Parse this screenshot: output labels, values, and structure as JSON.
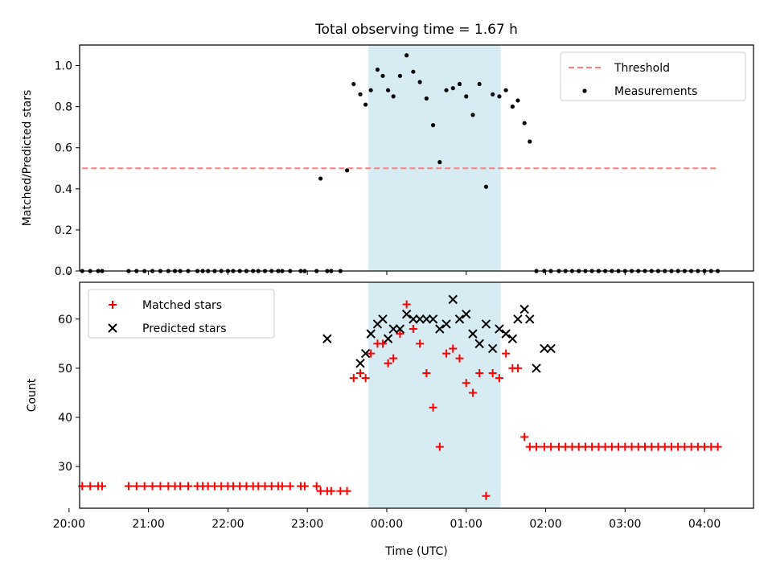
{
  "chart_data": {
    "type": "scatter",
    "title": "Total observing time = 1.67 h",
    "xlabel": "Time (UTC)",
    "x_unit": "UTC time",
    "xlim": [
      "20:08",
      "04:37"
    ],
    "x_ticks": [
      "20:00",
      "21:00",
      "22:00",
      "23:00",
      "00:00",
      "01:00",
      "02:00",
      "03:00",
      "04:00"
    ],
    "highlight_span": {
      "from": "23:46",
      "to": "01:26",
      "color": "#add8e6"
    },
    "panels": [
      {
        "ylabel": "Matched/Predicted stars",
        "ylim": [
          0,
          1.1
        ],
        "y_ticks": [
          "0.0",
          "0.2",
          "0.4",
          "0.6",
          "0.8",
          "1.0"
        ],
        "legend": {
          "position": "top-right",
          "entries": [
            "Threshold",
            "Measurements"
          ]
        },
        "series": [
          {
            "name": "Threshold",
            "style": "dashed-line",
            "color": "#ff7f7f",
            "x": [
              "20:10",
              "04:10"
            ],
            "y": [
              0.5,
              0.5
            ]
          },
          {
            "name": "Measurements",
            "style": "dot",
            "color": "#000000",
            "x": [
              "20:10",
              "20:16",
              "20:22",
              "20:25",
              "20:45",
              "20:51",
              "20:57",
              "21:03",
              "21:09",
              "21:15",
              "21:20",
              "21:24",
              "21:30",
              "21:37",
              "21:41",
              "21:45",
              "21:50",
              "21:55",
              "22:00",
              "22:04",
              "22:09",
              "22:14",
              "22:19",
              "22:23",
              "22:28",
              "22:33",
              "22:38",
              "22:41",
              "22:47",
              "22:55",
              "22:58",
              "23:07",
              "23:10",
              "23:15",
              "23:18",
              "23:25",
              "23:30",
              "23:35",
              "23:40",
              "23:44",
              "23:48",
              "23:53",
              "23:57",
              "00:01",
              "00:05",
              "00:10",
              "00:15",
              "00:20",
              "00:25",
              "00:30",
              "00:35",
              "00:40",
              "00:45",
              "00:50",
              "00:55",
              "01:00",
              "01:05",
              "01:10",
              "01:15",
              "01:20",
              "01:25",
              "01:30",
              "01:35",
              "01:39",
              "01:44",
              "01:48",
              "01:53",
              "01:59",
              "02:04",
              "02:10",
              "02:15",
              "02:20",
              "02:25",
              "02:30",
              "02:35",
              "02:40",
              "02:45",
              "02:50",
              "02:55",
              "03:00",
              "03:05",
              "03:10",
              "03:15",
              "03:20",
              "03:25",
              "03:30",
              "03:35",
              "03:40",
              "03:45",
              "03:50",
              "03:55",
              "04:00",
              "04:05",
              "04:10"
            ],
            "y": [
              0,
              0,
              0,
              0,
              0,
              0,
              0,
              0,
              0,
              0,
              0,
              0,
              0,
              0,
              0,
              0,
              0,
              0,
              0,
              0,
              0,
              0,
              0,
              0,
              0,
              0,
              0,
              0,
              0,
              0,
              0,
              0,
              0.45,
              0,
              0,
              0,
              0.49,
              0.91,
              0.86,
              0.81,
              0.88,
              0.98,
              0.95,
              0.88,
              0.85,
              0.95,
              1.05,
              0.97,
              0.92,
              0.84,
              0.71,
              0.53,
              0.88,
              0.89,
              0.91,
              0.85,
              0.76,
              0.91,
              0.41,
              0.86,
              0.85,
              0.88,
              0.8,
              0.83,
              0.72,
              0.63,
              0,
              0,
              0,
              0,
              0,
              0,
              0,
              0,
              0,
              0,
              0,
              0,
              0,
              0,
              0,
              0,
              0,
              0,
              0,
              0,
              0,
              0,
              0,
              0,
              0,
              0,
              0,
              0
            ]
          }
        ]
      },
      {
        "ylabel": "Count",
        "ylim": [
          21.5,
          67.5
        ],
        "y_ticks": [
          "30",
          "40",
          "50",
          "60"
        ],
        "legend": {
          "position": "top-left",
          "entries": [
            "Matched stars",
            "Predicted stars"
          ]
        },
        "series": [
          {
            "name": "Matched stars",
            "style": "plus",
            "color": "#ff0000",
            "x": [
              "20:10",
              "20:16",
              "20:22",
              "20:25",
              "20:45",
              "20:51",
              "20:57",
              "21:03",
              "21:09",
              "21:15",
              "21:20",
              "21:24",
              "21:30",
              "21:37",
              "21:41",
              "21:45",
              "21:50",
              "21:55",
              "22:00",
              "22:04",
              "22:09",
              "22:14",
              "22:19",
              "22:23",
              "22:28",
              "22:33",
              "22:38",
              "22:41",
              "22:47",
              "22:55",
              "22:58",
              "23:07",
              "23:10",
              "23:15",
              "23:18",
              "23:25",
              "23:30",
              "23:35",
              "23:40",
              "23:44",
              "23:48",
              "23:53",
              "23:57",
              "00:01",
              "00:05",
              "00:10",
              "00:15",
              "00:20",
              "00:25",
              "00:30",
              "00:35",
              "00:40",
              "00:45",
              "00:50",
              "00:55",
              "01:00",
              "01:05",
              "01:10",
              "01:15",
              "01:20",
              "01:25",
              "01:30",
              "01:35",
              "01:39",
              "01:44",
              "01:48",
              "01:53",
              "01:59",
              "02:04",
              "02:10",
              "02:15",
              "02:20",
              "02:25",
              "02:30",
              "02:35",
              "02:40",
              "02:45",
              "02:50",
              "02:55",
              "03:00",
              "03:05",
              "03:10",
              "03:15",
              "03:20",
              "03:25",
              "03:30",
              "03:35",
              "03:40",
              "03:45",
              "03:50",
              "03:55",
              "04:00",
              "04:05",
              "04:10"
            ],
            "y": [
              26,
              26,
              26,
              26,
              26,
              26,
              26,
              26,
              26,
              26,
              26,
              26,
              26,
              26,
              26,
              26,
              26,
              26,
              26,
              26,
              26,
              26,
              26,
              26,
              26,
              26,
              26,
              26,
              26,
              26,
              26,
              26,
              25,
              25,
              25,
              25,
              25,
              48,
              49,
              48,
              53,
              55,
              55,
              51,
              52,
              57,
              63,
              58,
              55,
              49,
              42,
              34,
              53,
              54,
              52,
              47,
              45,
              49,
              24,
              49,
              48,
              53,
              50,
              50,
              36,
              34,
              34,
              34,
              34,
              34,
              34,
              34,
              34,
              34,
              34,
              34,
              34,
              34,
              34,
              34,
              34,
              34,
              34,
              34,
              34,
              34,
              34,
              34,
              34,
              34,
              34,
              34,
              34,
              34
            ]
          },
          {
            "name": "Predicted stars",
            "style": "cross",
            "color": "#000000",
            "x": [
              "23:15",
              "23:40",
              "23:44",
              "23:48",
              "23:53",
              "23:57",
              "00:01",
              "00:05",
              "00:10",
              "00:15",
              "00:20",
              "00:25",
              "00:30",
              "00:35",
              "00:40",
              "00:45",
              "00:50",
              "00:55",
              "01:00",
              "01:05",
              "01:10",
              "01:15",
              "01:20",
              "01:25",
              "01:30",
              "01:35",
              "01:39",
              "01:44",
              "01:48",
              "01:53",
              "01:59",
              "02:04"
            ],
            "y": [
              56,
              51,
              53,
              57,
              59,
              60,
              56,
              58,
              58,
              61,
              60,
              60,
              60,
              60,
              58,
              59,
              64,
              60,
              61,
              57,
              55,
              59,
              54,
              58,
              57,
              56,
              60,
              62,
              60,
              50,
              54,
              54
            ]
          }
        ]
      }
    ]
  }
}
